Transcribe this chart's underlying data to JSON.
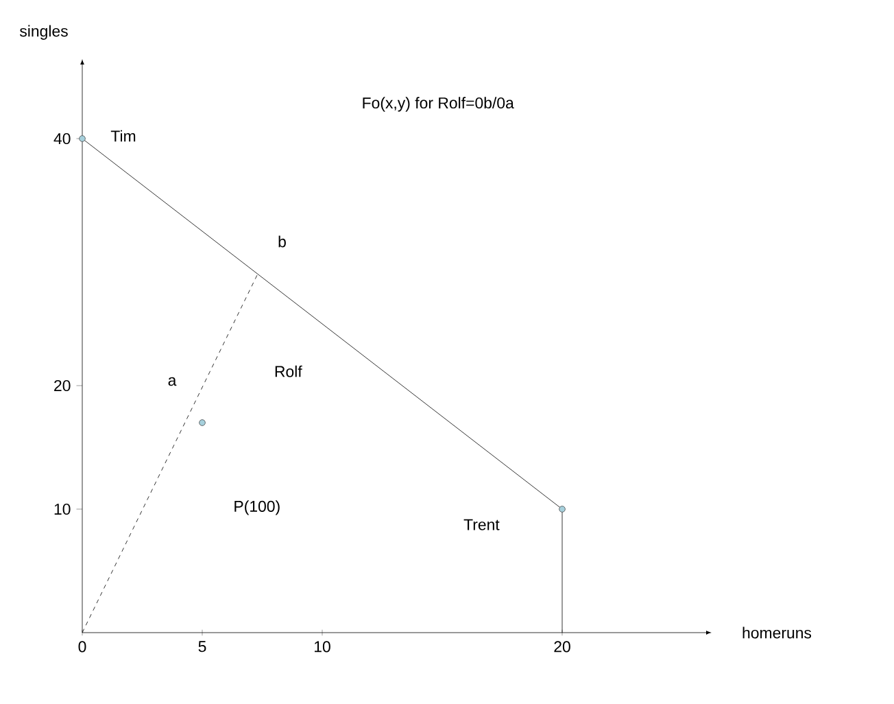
{
  "chart_data": {
    "type": "line",
    "title": "Fo(x,y) for Rolf=0b/0a",
    "xlabel": "homeruns",
    "ylabel": "singles",
    "xlim": [
      0,
      26
    ],
    "ylim": [
      0,
      46
    ],
    "xticks": [
      0,
      5,
      10,
      20
    ],
    "yticks": [
      10,
      20,
      40
    ],
    "grid": false,
    "series": [
      {
        "x": [
          0,
          20,
          20
        ],
        "values": [
          40,
          10,
          0
        ],
        "color": "#000000",
        "line_style": "solid",
        "marker": "none"
      },
      {
        "x": [
          0,
          7.3
        ],
        "values": [
          0,
          29
        ],
        "color": "#000000",
        "line_style": "dashed",
        "marker": "none"
      },
      {
        "type": "scatter",
        "x": [
          0,
          5,
          20
        ],
        "values": [
          40,
          17,
          10
        ],
        "color": "#a6d0dc",
        "marker": "circle"
      }
    ],
    "annotations": [
      {
        "text": "Tim",
        "x": 0,
        "y": 40
      },
      {
        "text": "b",
        "x": 7.3,
        "y": 29
      },
      {
        "text": "a",
        "x": 5,
        "y": 17
      },
      "Rolf",
      "P(100)",
      "Trent"
    ]
  }
}
